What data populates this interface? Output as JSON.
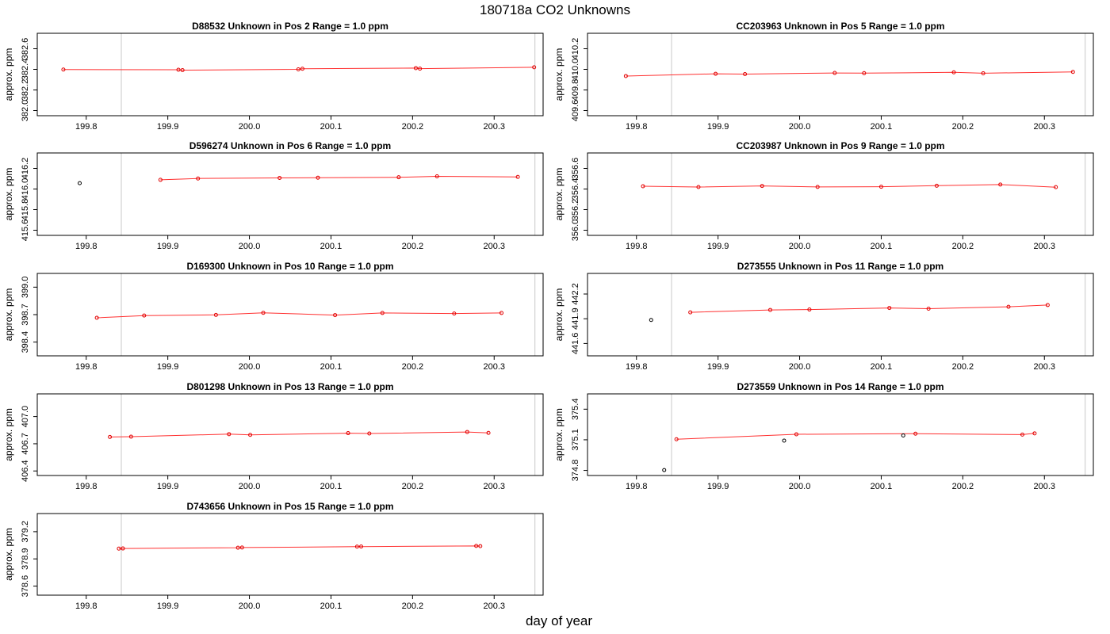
{
  "title": "180718a  CO2 Unknowns",
  "xlabel": "day of year",
  "chart_data": [
    {
      "type": "scatter",
      "title": "D88532    Unknown in Pos 2         Range = 1.0 ppm",
      "ylabel": "approx. ppm",
      "xlim": [
        199.74,
        200.36
      ],
      "ylim": [
        381.95,
        382.75
      ],
      "xticks": [
        199.8,
        199.9,
        200.0,
        200.1,
        200.2,
        200.3
      ],
      "yticks": [
        382.0,
        382.2,
        382.4,
        382.6
      ],
      "vlines": [
        199.843,
        200.35
      ],
      "line": {
        "x": [
          199.772,
          199.913,
          199.918,
          200.06,
          200.065,
          200.204,
          200.209,
          200.349
        ],
        "y": [
          382.398,
          382.396,
          382.392,
          382.4,
          382.406,
          382.412,
          382.407,
          382.42
        ]
      },
      "points": {
        "x": [
          199.772,
          199.913,
          199.918,
          200.06,
          200.065,
          200.204,
          200.209,
          200.349
        ],
        "y": [
          382.398,
          382.396,
          382.392,
          382.4,
          382.406,
          382.412,
          382.407,
          382.42
        ]
      },
      "outliers": {
        "x": [],
        "y": []
      }
    },
    {
      "type": "scatter",
      "title": "CC203963    Unknown in Pos 5         Range = 1.0 ppm",
      "ylabel": "approx. ppm",
      "xlim": [
        199.74,
        200.36
      ],
      "ylim": [
        409.55,
        410.35
      ],
      "xticks": [
        199.8,
        199.9,
        200.0,
        200.1,
        200.2,
        200.3
      ],
      "yticks": [
        409.6,
        409.8,
        410.0,
        410.2
      ],
      "vlines": [
        199.843,
        200.35
      ],
      "line": {
        "x": [
          199.787,
          199.897,
          199.933,
          200.043,
          200.079,
          200.189,
          200.225,
          200.335
        ],
        "y": [
          409.935,
          409.957,
          409.954,
          409.965,
          409.963,
          409.971,
          409.962,
          409.975
        ]
      },
      "points": {
        "x": [
          199.787,
          199.897,
          199.933,
          200.043,
          200.079,
          200.189,
          200.225,
          200.335
        ],
        "y": [
          409.935,
          409.957,
          409.954,
          409.965,
          409.963,
          409.971,
          409.962,
          409.975
        ]
      },
      "outliers": {
        "x": [],
        "y": []
      }
    },
    {
      "type": "scatter",
      "title": "D596274    Unknown in Pos 6         Range = 1.0 ppm",
      "ylabel": "approx. ppm",
      "xlim": [
        199.74,
        200.36
      ],
      "ylim": [
        415.55,
        416.35
      ],
      "xticks": [
        199.8,
        199.9,
        200.0,
        200.1,
        200.2,
        200.3
      ],
      "yticks": [
        415.6,
        415.8,
        416.0,
        416.2
      ],
      "vlines": [
        199.843,
        200.35
      ],
      "line": {
        "x": [
          199.891,
          199.937,
          200.037,
          200.084,
          200.183,
          200.23,
          200.329
        ],
        "y": [
          416.089,
          416.102,
          416.108,
          416.11,
          416.114,
          416.123,
          416.117
        ]
      },
      "points": {
        "x": [
          199.891,
          199.937,
          200.037,
          200.084,
          200.183,
          200.23,
          200.329
        ],
        "y": [
          416.089,
          416.102,
          416.108,
          416.11,
          416.114,
          416.123,
          416.117
        ]
      },
      "outliers": {
        "x": [
          199.792
        ],
        "y": [
          416.057
        ]
      }
    },
    {
      "type": "scatter",
      "title": "CC203987    Unknown in Pos 9         Range = 1.0 ppm",
      "ylabel": "approx. ppm",
      "xlim": [
        199.74,
        200.36
      ],
      "ylim": [
        355.95,
        356.75
      ],
      "xticks": [
        199.8,
        199.9,
        200.0,
        200.1,
        200.2,
        200.3
      ],
      "yticks": [
        356.0,
        356.2,
        356.4,
        356.6
      ],
      "vlines": [
        199.843,
        200.35
      ],
      "line": {
        "x": [
          199.808,
          199.876,
          199.954,
          200.022,
          200.1,
          200.168,
          200.246,
          200.314
        ],
        "y": [
          356.427,
          356.419,
          356.43,
          356.42,
          356.422,
          356.432,
          356.443,
          356.418
        ]
      },
      "points": {
        "x": [
          199.808,
          199.876,
          199.954,
          200.022,
          200.1,
          200.168,
          200.246,
          200.314
        ],
        "y": [
          356.427,
          356.419,
          356.43,
          356.42,
          356.422,
          356.432,
          356.443,
          356.418
        ]
      },
      "outliers": {
        "x": [],
        "y": []
      }
    },
    {
      "type": "scatter",
      "title": "D169300    Unknown in Pos 10         Range = 1.0 ppm",
      "ylabel": "approx. ppm",
      "xlim": [
        199.74,
        200.36
      ],
      "ylim": [
        398.25,
        399.15
      ],
      "xticks": [
        199.8,
        199.9,
        200.0,
        200.1,
        200.2,
        200.3
      ],
      "yticks": [
        398.4,
        398.7,
        399.0
      ],
      "vlines": [
        199.843,
        200.35
      ],
      "line": {
        "x": [
          199.813,
          199.871,
          199.959,
          200.017,
          200.105,
          200.163,
          200.251,
          200.309
        ],
        "y": [
          398.665,
          398.69,
          398.697,
          398.72,
          398.695,
          398.718,
          398.712,
          398.718
        ]
      },
      "points": {
        "x": [
          199.813,
          199.871,
          199.959,
          200.017,
          200.105,
          200.163,
          200.251,
          200.309
        ],
        "y": [
          398.665,
          398.69,
          398.697,
          398.72,
          398.695,
          398.718,
          398.712,
          398.718
        ]
      },
      "outliers": {
        "x": [],
        "y": []
      }
    },
    {
      "type": "scatter",
      "title": "D273555    Unknown in Pos 11         Range = 1.0 ppm",
      "ylabel": "approx. ppm",
      "xlim": [
        199.74,
        200.36
      ],
      "ylim": [
        441.45,
        442.45
      ],
      "xticks": [
        199.8,
        199.9,
        200.0,
        200.1,
        200.2,
        200.3
      ],
      "yticks": [
        441.6,
        441.9,
        442.2
      ],
      "vlines": [
        199.843,
        200.35
      ],
      "line": {
        "x": [
          199.866,
          199.964,
          200.012,
          200.11,
          200.158,
          200.256,
          200.304
        ],
        "y": [
          441.978,
          442.007,
          442.012,
          442.031,
          442.022,
          442.045,
          442.066
        ]
      },
      "points": {
        "x": [
          199.866,
          199.964,
          200.012,
          200.11,
          200.158,
          200.256,
          200.304
        ],
        "y": [
          441.978,
          442.007,
          442.012,
          442.031,
          442.022,
          442.045,
          442.066
        ]
      },
      "outliers": {
        "x": [
          199.818
        ],
        "y": [
          441.885
        ]
      }
    },
    {
      "type": "scatter",
      "title": "D801298    Unknown in Pos 13         Range = 1.0 ppm",
      "ylabel": "approx. ppm",
      "xlim": [
        199.74,
        200.36
      ],
      "ylim": [
        406.35,
        407.25
      ],
      "xticks": [
        199.8,
        199.9,
        200.0,
        200.1,
        200.2,
        200.3
      ],
      "yticks": [
        406.4,
        406.7,
        407.0
      ],
      "vlines": [
        199.843,
        200.35
      ],
      "line": {
        "x": [
          199.829,
          199.855,
          199.975,
          200.001,
          200.121,
          200.147,
          200.267,
          200.293
        ],
        "y": [
          406.775,
          406.778,
          406.806,
          406.798,
          406.817,
          406.813,
          406.83,
          406.82
        ]
      },
      "points": {
        "x": [
          199.829,
          199.855,
          199.975,
          200.001,
          200.121,
          200.147,
          200.267,
          200.293
        ],
        "y": [
          406.775,
          406.778,
          406.806,
          406.798,
          406.817,
          406.813,
          406.83,
          406.82
        ]
      },
      "outliers": {
        "x": [],
        "y": []
      }
    },
    {
      "type": "scatter",
      "title": "D273559    Unknown in Pos 14         Range = 1.0 ppm",
      "ylabel": "approx. ppm",
      "xlim": [
        199.74,
        200.36
      ],
      "ylim": [
        374.75,
        375.55
      ],
      "xticks": [
        199.8,
        199.9,
        200.0,
        200.1,
        200.2,
        200.3
      ],
      "yticks": [
        374.8,
        375.1,
        375.4
      ],
      "vlines": [
        199.843,
        200.35
      ],
      "line": {
        "x": [
          199.849,
          199.996,
          200.142,
          200.273,
          200.288
        ],
        "y": [
          375.105,
          375.154,
          375.16,
          375.151,
          375.163
        ]
      },
      "points": {
        "x": [
          199.849,
          199.996,
          200.142,
          200.273,
          200.288
        ],
        "y": [
          375.105,
          375.154,
          375.16,
          375.151,
          375.163
        ]
      },
      "outliers": {
        "x": [
          199.834,
          199.981,
          200.127
        ],
        "y": [
          374.803,
          375.092,
          375.142
        ]
      }
    },
    {
      "type": "scatter",
      "title": "D743656    Unknown in Pos 15         Range = 1.0 ppm",
      "ylabel": "approx. ppm",
      "xlim": [
        199.74,
        200.36
      ],
      "ylim": [
        378.5,
        379.4
      ],
      "xticks": [
        199.8,
        199.9,
        200.0,
        200.1,
        200.2,
        200.3
      ],
      "yticks": [
        378.6,
        378.9,
        379.2
      ],
      "vlines": [
        199.843,
        200.35
      ],
      "line": {
        "x": [
          199.84,
          199.845,
          199.986,
          199.991,
          200.132,
          200.137,
          200.278,
          200.283
        ],
        "y": [
          379.013,
          379.015,
          379.023,
          379.025,
          379.035,
          379.036,
          379.043,
          379.041
        ]
      },
      "points": {
        "x": [
          199.84,
          199.845,
          199.986,
          199.991,
          200.132,
          200.137,
          200.278,
          200.283
        ],
        "y": [
          379.013,
          379.015,
          379.023,
          379.025,
          379.035,
          379.036,
          379.043,
          379.041
        ]
      },
      "outliers": {
        "x": [],
        "y": []
      }
    }
  ]
}
